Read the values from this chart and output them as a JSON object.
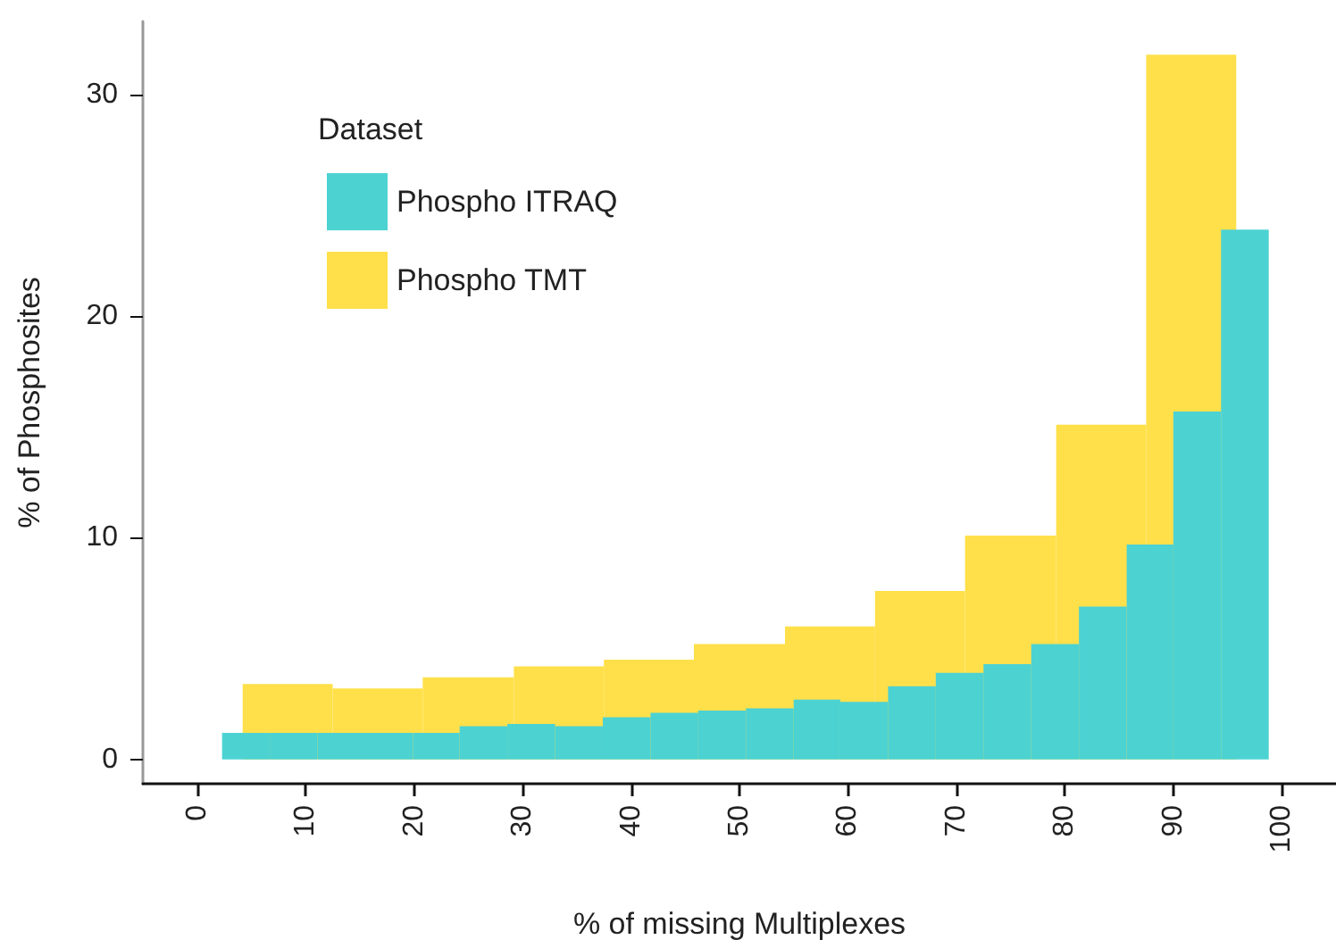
{
  "chart_data": {
    "type": "histogram",
    "xlabel": "% of missing Multiplexes",
    "ylabel": "% of Phosphosites",
    "legend_title": "Dataset",
    "legend": "top left",
    "xlim": [
      -5,
      105
    ],
    "xticks": [
      0,
      10,
      20,
      30,
      40,
      50,
      60,
      70,
      80,
      90,
      100
    ],
    "ylim": [
      -1.1,
      33.3
    ],
    "yticks": [
      0,
      10,
      20,
      30
    ],
    "grid": false,
    "bins": [
      2.3,
      6.7,
      11.1,
      15.5,
      19.9,
      24.2,
      28.6,
      33.0,
      37.4,
      41.8,
      46.2,
      50.6,
      55.0,
      59.3,
      63.7,
      68.1,
      72.5,
      76.9,
      81.3,
      85.7,
      90.0,
      94.4,
      98.8
    ],
    "series": [
      {
        "name": "Phospho ITRAQ",
        "color": "#4dd2d2",
        "values": [
          1.2,
          1.2,
          1.2,
          1.2,
          1.2,
          1.5,
          1.6,
          1.5,
          1.9,
          2.1,
          2.2,
          2.3,
          2.7,
          2.6,
          3.3,
          3.9,
          4.3,
          5.2,
          6.9,
          9.7,
          15.7,
          23.9
        ]
      },
      {
        "name": "Phospho TMT",
        "color": "#ffe04a",
        "bins": [
          4.2,
          12.5,
          20.8,
          29.2,
          37.5,
          45.8,
          54.2,
          62.5,
          70.8,
          79.2,
          87.5,
          95.8
        ],
        "values": [
          3.4,
          3.2,
          3.7,
          4.2,
          4.5,
          5.2,
          6.0,
          7.6,
          10.1,
          15.1,
          31.8
        ]
      }
    ]
  }
}
